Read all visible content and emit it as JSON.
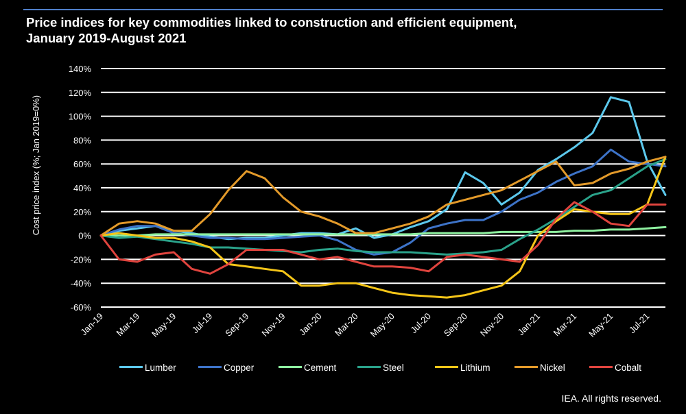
{
  "title_line1": "Price indices for key commodities linked to construction and efficient equipment,",
  "title_line2": "January 2019-August 2021",
  "credit": "IEA. All rights reserved.",
  "colors": {
    "title": "#4f7ec9",
    "Lumber": "#5cc8ec",
    "Copper": "#3d73c8",
    "Cement": "#8ef0a0",
    "Steel": "#2aa28a",
    "Lithium": "#f5c518",
    "Nickel": "#e39a2a",
    "Cobalt": "#e0443e"
  },
  "chart_data": {
    "type": "line",
    "title": "Price indices for key commodities linked to construction and efficient equipment, January 2019-August 2021",
    "xlabel": "",
    "ylabel": "Cost price index (%; Jan 2019=0%)",
    "ylim": [
      -60,
      140
    ],
    "y_ticks": [
      "-60%",
      "-40%",
      "-20%",
      "0%",
      "20%",
      "40%",
      "60%",
      "80%",
      "100%",
      "120%",
      "140%"
    ],
    "x_tick_labels": [
      "Jan-19",
      "Mar-19",
      "May-19",
      "Jul-19",
      "Sep-19",
      "Nov-19",
      "Jan-20",
      "Mar-20",
      "May-20",
      "Jul-20",
      "Sep-20",
      "Nov-20",
      "Jan-21",
      "Mar-21",
      "May-21",
      "Jul-21"
    ],
    "x": [
      "Jan-19",
      "Feb-19",
      "Mar-19",
      "Apr-19",
      "May-19",
      "Jun-19",
      "Jul-19",
      "Aug-19",
      "Sep-19",
      "Oct-19",
      "Nov-19",
      "Dec-19",
      "Jan-20",
      "Feb-20",
      "Mar-20",
      "Apr-20",
      "May-20",
      "Jun-20",
      "Jul-20",
      "Aug-20",
      "Sep-20",
      "Oct-20",
      "Nov-20",
      "Dec-20",
      "Jan-21",
      "Feb-21",
      "Mar-21",
      "Apr-21",
      "May-21",
      "Jun-21",
      "Jul-21",
      "Aug-21"
    ],
    "grid": true,
    "legend_position": "bottom",
    "series": [
      {
        "name": "Lumber",
        "values": [
          0,
          4,
          6,
          8,
          4,
          2,
          -1,
          -3,
          -2,
          -2,
          0,
          2,
          2,
          1,
          6,
          -2,
          1,
          7,
          12,
          22,
          53,
          44,
          26,
          36,
          55,
          64,
          74,
          86,
          116,
          112,
          62,
          34
        ]
      },
      {
        "name": "Copper",
        "values": [
          0,
          5,
          8,
          8,
          2,
          0,
          -2,
          -2,
          -3,
          -3,
          -2,
          -1,
          0,
          -4,
          -12,
          -16,
          -14,
          -6,
          6,
          10,
          13,
          13,
          20,
          30,
          36,
          45,
          52,
          58,
          72,
          62,
          60,
          58
        ]
      },
      {
        "name": "Cement",
        "values": [
          0,
          0,
          0,
          1,
          1,
          1,
          1,
          1,
          1,
          1,
          1,
          1,
          1,
          1,
          1,
          1,
          1,
          1,
          2,
          2,
          2,
          2,
          3,
          3,
          3,
          3,
          4,
          4,
          5,
          5,
          6,
          7
        ]
      },
      {
        "name": "Steel",
        "values": [
          0,
          -2,
          -1,
          -3,
          -5,
          -7,
          -10,
          -10,
          -11,
          -12,
          -13,
          -14,
          -12,
          -11,
          -13,
          -14,
          -14,
          -14,
          -15,
          -16,
          -15,
          -14,
          -12,
          -3,
          5,
          14,
          24,
          34,
          38,
          48,
          58,
          64
        ]
      },
      {
        "name": "Lithium",
        "values": [
          0,
          2,
          0,
          -2,
          -2,
          -5,
          -10,
          -24,
          -26,
          -28,
          -30,
          -42,
          -42,
          -40,
          -40,
          -44,
          -48,
          -50,
          -51,
          -52,
          -50,
          -46,
          -42,
          -30,
          0,
          12,
          22,
          20,
          18,
          18,
          26,
          66
        ]
      },
      {
        "name": "Nickel",
        "values": [
          0,
          10,
          12,
          10,
          4,
          4,
          18,
          38,
          54,
          48,
          32,
          20,
          16,
          10,
          2,
          2,
          6,
          10,
          16,
          26,
          30,
          34,
          38,
          46,
          54,
          62,
          42,
          44,
          52,
          56,
          62,
          66
        ]
      },
      {
        "name": "Cobalt",
        "values": [
          0,
          -20,
          -22,
          -16,
          -14,
          -28,
          -32,
          -24,
          -12,
          -12,
          -12,
          -16,
          -20,
          -18,
          -22,
          -26,
          -26,
          -27,
          -30,
          -18,
          -16,
          -18,
          -20,
          -22,
          -8,
          14,
          28,
          20,
          10,
          8,
          26,
          26
        ]
      }
    ]
  }
}
